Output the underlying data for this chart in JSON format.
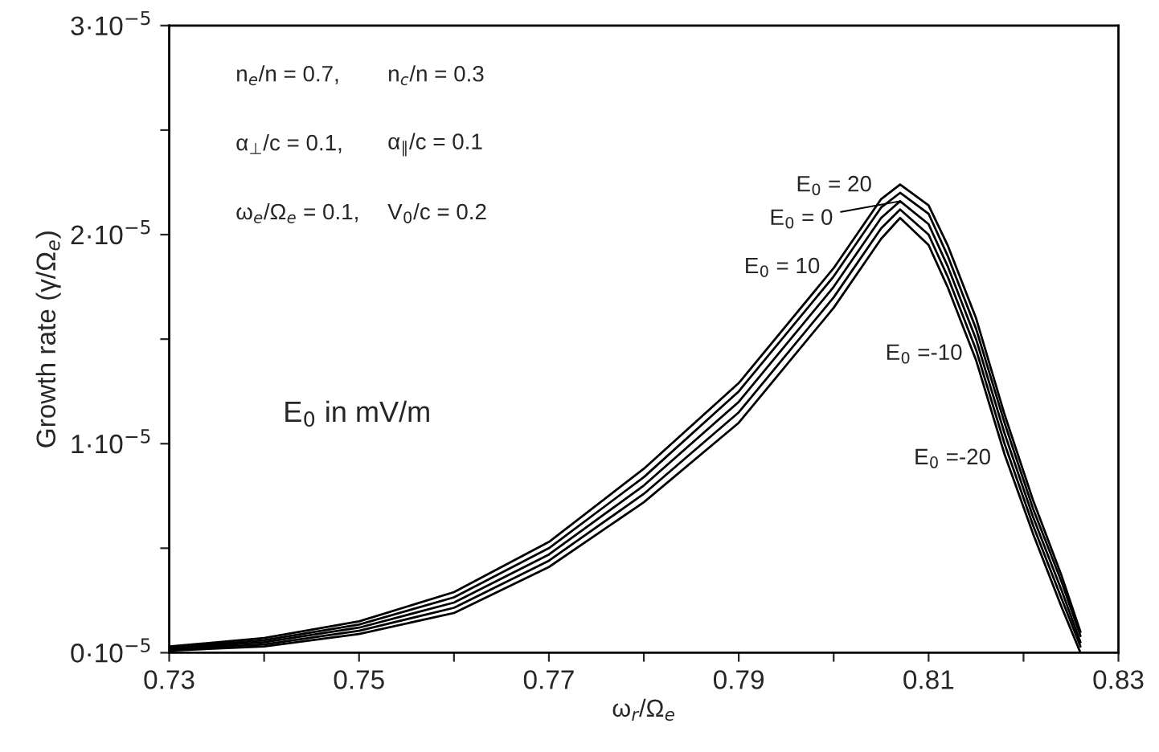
{
  "chart_data": {
    "type": "line",
    "xlabel": "ω$_{r}$/Ω$_{e}$",
    "ylabel": "Growth rate (γ/Ω$_{e}$)",
    "x": [
      0.73,
      0.74,
      0.75,
      0.76,
      0.77,
      0.78,
      0.79,
      0.8,
      0.805,
      0.807,
      0.81,
      0.812,
      0.815,
      0.818,
      0.821,
      0.824,
      0.826
    ],
    "series": [
      {
        "name": "E$_{0}$ = 20",
        "color": "#000000",
        "values": [
          3e-07,
          7e-07,
          1.5e-06,
          2.9e-06,
          5.3e-06,
          8.8e-06,
          1.29e-05,
          1.84e-05,
          2.17e-05,
          2.24e-05,
          2.14e-05,
          1.95e-05,
          1.6e-05,
          1.14e-05,
          7.3e-06,
          3.7e-06,
          1e-06
        ]
      },
      {
        "name": "E$_{0}$ = 10",
        "color": "#000000",
        "values": [
          2.5e-07,
          6e-07,
          1.35e-06,
          2.65e-06,
          5e-06,
          8.4e-06,
          1.25e-05,
          1.8e-05,
          2.13e-05,
          2.2e-05,
          2.1e-05,
          1.9e-05,
          1.55e-05,
          1.1e-05,
          6.9e-06,
          3.4e-06,
          8e-07
        ]
      },
      {
        "name": "E$_{0}$ = 0",
        "color": "#000000",
        "values": [
          2e-07,
          5e-07,
          1.2e-06,
          2.4e-06,
          4.7e-06,
          8e-06,
          1.2e-05,
          1.75e-05,
          2.08e-05,
          2.16e-05,
          2.05e-05,
          1.85e-05,
          1.5e-05,
          1.05e-05,
          6.5e-06,
          3e-06,
          5e-07
        ]
      },
      {
        "name": "E$_{0}$ =-10",
        "color": "#000000",
        "values": [
          1.5e-07,
          4e-07,
          1.05e-06,
          2.15e-06,
          4.4e-06,
          7.6e-06,
          1.15e-05,
          1.7e-05,
          2.03e-05,
          2.12e-05,
          2e-05,
          1.8e-05,
          1.45e-05,
          1e-05,
          6.1e-06,
          2.6e-06,
          3e-07
        ]
      },
      {
        "name": "E$_{0}$ =-20",
        "color": "#000000",
        "values": [
          1e-07,
          3e-07,
          9e-07,
          1.9e-06,
          4.1e-06,
          7.2e-06,
          1.1e-05,
          1.65e-05,
          1.98e-05,
          2.08e-05,
          1.95e-05,
          1.75e-05,
          1.4e-05,
          9.5e-06,
          5.7e-06,
          2.2e-06,
          0.0
        ]
      }
    ],
    "xlim": [
      0.73,
      0.83
    ],
    "xticks": [
      0.73,
      {
        "value": 0.74,
        "label": null
      },
      0.75,
      {
        "value": 0.76,
        "label": null
      },
      0.77,
      {
        "value": 0.78,
        "label": null
      },
      0.79,
      {
        "value": 0.8,
        "label": null
      },
      0.81,
      {
        "value": 0.82,
        "label": null
      },
      0.83
    ],
    "ylim": [
      0,
      3e-05
    ],
    "yticks": [
      {
        "value": 0,
        "label": "0·10$^{−5}$"
      },
      {
        "value": 5e-06,
        "label": null
      },
      {
        "value": 1e-05,
        "label": "1·10$^{−5}$"
      },
      {
        "value": 1.5e-05,
        "label": null
      },
      {
        "value": 2e-05,
        "label": "2·10$^{−5}$"
      },
      {
        "value": 2.5e-05,
        "label": null
      },
      {
        "value": 3e-05,
        "label": "3·10$^{−5}$"
      }
    ],
    "line_style": "solid",
    "marker": "none",
    "annotations": [
      "n$_{e}$/n = 0.7,",
      "n$_{c}$/n = 0.3",
      "α$_{⊥}$/c = 0.1,",
      "α$_{∥}$/c = 0.1",
      "ω$_{e}$/Ω$_{e}$ = 0.1,",
      "V$_{0}$/c = 0.2",
      "E$_{0}$ in mV/m"
    ]
  }
}
